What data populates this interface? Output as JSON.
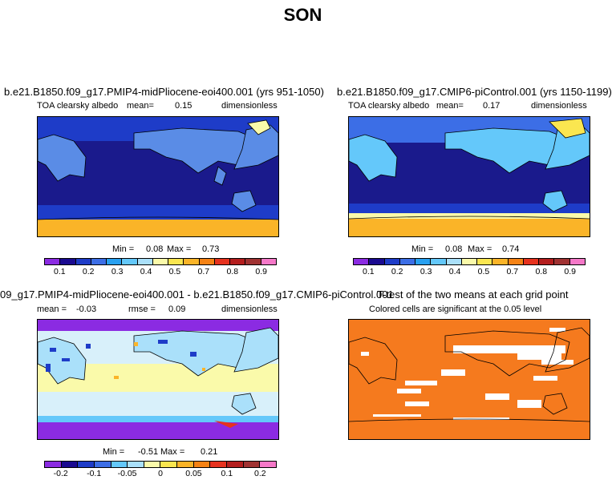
{
  "page": {
    "title": "SON"
  },
  "panels": {
    "p1": {
      "title": "b.e21.B1850.f09_g17.PMIP4-midPliocene-eoi400.001 (yrs 951-1050)",
      "variable": "TOA clearsky albedo",
      "mean_label": "mean=",
      "mean_value": "0.15",
      "units": "dimensionless",
      "min_label": "Min =",
      "min_value": "0.08",
      "max_label": "Max =",
      "max_value": "0.73"
    },
    "p2": {
      "title": "b.e21.B1850.f09_g17.CMIP6-piControl.001 (yrs 1150-1199)",
      "variable": "TOA clearsky albedo",
      "mean_label": "mean=",
      "mean_value": "0.17",
      "units": "dimensionless",
      "min_label": "Min =",
      "min_value": "0.08",
      "max_label": "Max =",
      "max_value": "0.74"
    },
    "p3": {
      "title": "09_g17.PMIP4-midPliocene-eoi400.001 - b.e21.B1850.f09_g17.CMIP6-piControl.001",
      "mean_label": "mean =",
      "mean_value": "-0.03",
      "rmse_label": "rmse =",
      "rmse_value": "0.09",
      "units": "dimensionless",
      "min_label": "Min =",
      "min_value": "-0.51",
      "max_label": "Max =",
      "max_value": "0.21"
    },
    "p4": {
      "title": "T-test of the two means at each grid point",
      "subtitle": "Colored cells are significant at the 0.05 level"
    }
  },
  "colorbars": {
    "abs": {
      "colors": [
        "#8b2be2",
        "#1a0a90",
        "#1e3cc8",
        "#3c6ee6",
        "#28a0f0",
        "#64c8fa",
        "#aae0fa",
        "#fafaaa",
        "#fae650",
        "#fab428",
        "#f58214",
        "#e6321e",
        "#b41e1e",
        "#a03232",
        "#f578c8"
      ],
      "labels": [
        "0.1",
        "0.2",
        "0.3",
        "0.4",
        "0.5",
        "0.7",
        "0.8",
        "0.9"
      ]
    },
    "diff": {
      "colors": [
        "#8b2be2",
        "#1a0a90",
        "#1e3cc8",
        "#3c6ee6",
        "#64c8fa",
        "#aae0fa",
        "#fafaaa",
        "#fae650",
        "#fab428",
        "#f58214",
        "#e6321e",
        "#b41e1e",
        "#a03232",
        "#f578c8"
      ],
      "labels": [
        "-0.2",
        "-0.1",
        "-0.05",
        "0",
        "0.05",
        "0.1",
        "0.2"
      ]
    }
  },
  "colors": {
    "ocean_low": "#1a1a8c",
    "ocean_mid": "#1e3cc8",
    "land": "#5a8ce6",
    "ice_high": "#fab428",
    "diff_bg": "#d8f0fa",
    "diff_low": "#8b2be2",
    "ttest": "#f57a1e"
  }
}
